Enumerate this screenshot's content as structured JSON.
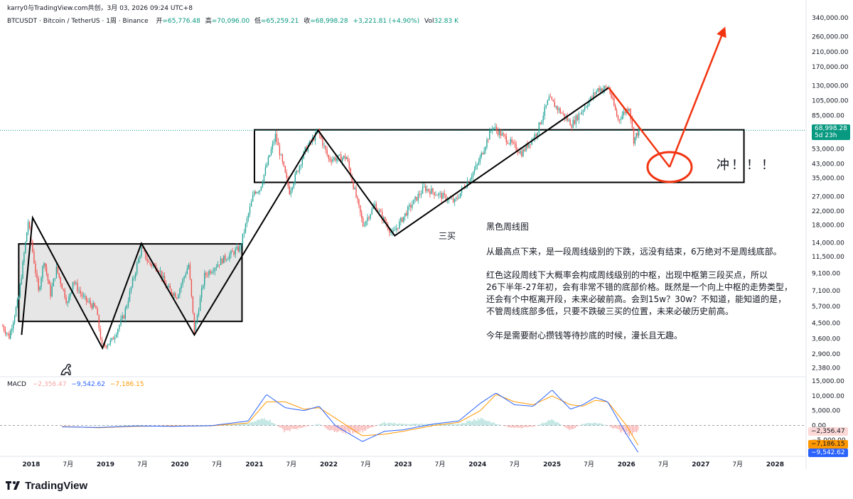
{
  "header": {
    "author_line": "karry0与TradingView.com共创，3月 03, 2026 09:24 UTC+8",
    "symbol": "BTCUSDT · Bitcoin / TetherUS · 1周 · Binance",
    "open_label": "开",
    "open": "=65,776.48",
    "high_label": "高",
    "high": "=70,096.00",
    "low_label": "低",
    "low": "=65,259.21",
    "close_label": "收",
    "close": "=68,998.28",
    "change": "+3,221.81 (+4.90%)",
    "vol_label": "Vol",
    "vol": "32.83 K"
  },
  "price_axis": {
    "ticks": [
      "340,000.00",
      "260,000.00",
      "210,000.00",
      "170,000.00",
      "130,000.00",
      "105,000.00",
      "85,000.00",
      "68,998.28",
      "53,000.00",
      "43,000.00",
      "35,000.00",
      "27,000.00",
      "22,000.00",
      "18,000.00",
      "14,000.00",
      "11,500.00",
      "9,100.00",
      "7,100.00",
      "5,700.00",
      "4,500.00",
      "3,600.00",
      "2,900.00",
      "2,380.00"
    ],
    "current_price": "68,998.28",
    "current_countdown": "5d 23h"
  },
  "macd_axis": {
    "ticks": [
      "15,000.00",
      "10,000.00",
      "5,000.00",
      "0.00",
      "−5,000.00"
    ]
  },
  "macd_legend": {
    "label": "MACD",
    "hist": "−2,356.47",
    "macd": "−9,542.62",
    "signal": "−7,186.15"
  },
  "macd_tags": {
    "hist": "−2,356.47",
    "signal": "−7,186.15",
    "macd": "−9,542.62"
  },
  "time_axis": [
    "2018",
    "7月",
    "2019",
    "7月",
    "2020",
    "7月",
    "2021",
    "7月",
    "2022",
    "7月",
    "2023",
    "7月",
    "2024",
    "7月",
    "2025",
    "7月",
    "2026",
    "7月",
    "2027",
    "7月",
    "2028"
  ],
  "annotations": {
    "san_mai": "三买",
    "chong": "冲！！！",
    "title": "黑色周线图",
    "para1": "从最高点下来，是一段周线级别的下跌，远没有结束，6万绝对不是周线底部。",
    "para2_l1": "红色这段周线下大概率会构成周线级别的中枢，出现中枢第三段买点，所以",
    "para2_l2": "26下半年-27年初，会有非常不错的底部价格。既然是一个向上中枢的走势类型，",
    "para2_l3": "还会有个中枢离开段，未来必破前高。会到15w？30w？不知道，能知道的是，",
    "para2_l4": "不管周线底部多低，只要不跌破三买的位置，未来必破历史前高。",
    "para3": "今年是需要耐心攒钱等待抄底的时候，漫长且无趣。"
  },
  "branding": {
    "logo_text": "TradingView"
  },
  "colors": {
    "up": "#26a69a",
    "down": "#ef5350",
    "annotation_red": "#f23411",
    "macd_line": "#2962ff",
    "signal_line": "#ff9800",
    "hist_up": "#26a69a",
    "hist_down": "#ef5350",
    "price_tag": "#089981"
  },
  "chart_data": {
    "type": "candlestick",
    "symbol": "BTCUSDT",
    "interval": "1W",
    "y_scale": "log",
    "ylim": [
      2100,
      380000
    ],
    "xlim": [
      "2017-08-01",
      "2028-06-01"
    ],
    "close_path": [
      [
        "2017-08-14",
        4300
      ],
      [
        "2017-09-15",
        3700
      ],
      [
        "2017-11-01",
        6500
      ],
      [
        "2017-12-17",
        19000
      ],
      [
        "2018-02-06",
        7000
      ],
      [
        "2018-03-05",
        11000
      ],
      [
        "2018-04-06",
        6800
      ],
      [
        "2018-05-05",
        9700
      ],
      [
        "2018-06-29",
        5900
      ],
      [
        "2018-07-25",
        8200
      ],
      [
        "2018-09-15",
        6400
      ],
      [
        "2018-11-15",
        5500
      ],
      [
        "2018-12-15",
        3200
      ],
      [
        "2019-02-01",
        3500
      ],
      [
        "2019-04-01",
        5000
      ],
      [
        "2019-06-26",
        13000
      ],
      [
        "2019-08-01",
        10500
      ],
      [
        "2019-09-20",
        9800
      ],
      [
        "2019-10-25",
        7500
      ],
      [
        "2019-12-17",
        6600
      ],
      [
        "2020-02-13",
        10300
      ],
      [
        "2020-03-12",
        4000
      ],
      [
        "2020-05-01",
        8800
      ],
      [
        "2020-07-27",
        11000
      ],
      [
        "2020-10-21",
        13000
      ],
      [
        "2020-12-31",
        29000
      ],
      [
        "2021-01-27",
        30000
      ],
      [
        "2021-04-14",
        64000
      ],
      [
        "2021-06-22",
        29000
      ],
      [
        "2021-09-07",
        52000
      ],
      [
        "2021-11-10",
        68000
      ],
      [
        "2021-12-31",
        46000
      ],
      [
        "2022-03-29",
        47000
      ],
      [
        "2022-06-18",
        18000
      ],
      [
        "2022-08-15",
        24000
      ],
      [
        "2022-11-09",
        15800
      ],
      [
        "2023-01-31",
        23000
      ],
      [
        "2023-04-14",
        30500
      ],
      [
        "2023-09-11",
        25000
      ],
      [
        "2023-12-31",
        42000
      ],
      [
        "2024-03-14",
        73000
      ],
      [
        "2024-08-05",
        50000
      ],
      [
        "2024-10-15",
        66000
      ],
      [
        "2024-12-17",
        108000
      ],
      [
        "2025-04-07",
        75000
      ],
      [
        "2025-08-14",
        124000
      ],
      [
        "2025-10-06",
        126000
      ],
      [
        "2025-11-21",
        80000
      ],
      [
        "2026-01-14",
        97000
      ],
      [
        "2026-02-06",
        60000
      ],
      [
        "2026-03-03",
        68998.28
      ]
    ],
    "black_waves": [
      [
        "2017-11-15",
        3800
      ],
      [
        "2018-01-08",
        20000
      ],
      [
        "2018-12-17",
        3150
      ],
      [
        "2019-06-26",
        13900
      ],
      [
        "2020-03-12",
        3800
      ],
      [
        "2021-11-10",
        69000
      ],
      [
        "2022-11-21",
        15500
      ],
      [
        "2025-10-06",
        126200
      ]
    ],
    "red_projection": [
      [
        "2025-10-06",
        126200
      ],
      [
        "2026-08-01",
        41000
      ],
      [
        "2027-05-01",
        300000
      ]
    ],
    "zones": [
      {
        "x": [
          "2017-11-01",
          "2020-11-01"
        ],
        "y": [
          4600,
          13800
        ],
        "fill": "#e6e6e6"
      },
      {
        "x": [
          "2021-01-01",
          "2027-08-01"
        ],
        "y": [
          33000,
          69500
        ],
        "fill": "none"
      }
    ],
    "macd": {
      "x": [
        "2018-06-01",
        "2018-12-01",
        "2019-06-01",
        "2019-12-01",
        "2020-06-01",
        "2020-12-01",
        "2021-03-01",
        "2021-06-01",
        "2021-09-01",
        "2021-11-15",
        "2022-02-01",
        "2022-06-15",
        "2022-10-01",
        "2023-01-01",
        "2023-06-01",
        "2023-10-01",
        "2024-01-15",
        "2024-04-01",
        "2024-07-01",
        "2024-10-01",
        "2025-01-01",
        "2025-04-01",
        "2025-06-01",
        "2025-08-01",
        "2025-10-01",
        "2026-01-01",
        "2026-03-03"
      ],
      "macd": [
        -500,
        -700,
        -200,
        -300,
        -100,
        1500,
        10500,
        6000,
        5000,
        6500,
        0,
        -5500,
        -2000,
        -1500,
        500,
        1500,
        7500,
        11000,
        7000,
        6500,
        12000,
        5500,
        7000,
        9500,
        8000,
        -3000,
        -9542.62
      ],
      "signal": [
        -400,
        -800,
        -300,
        -200,
        -150,
        800,
        8000,
        8000,
        5500,
        6000,
        2500,
        -3500,
        -3000,
        -2000,
        0,
        1000,
        5000,
        10500,
        8000,
        7000,
        10000,
        7000,
        6500,
        8500,
        8000,
        0,
        -7186.15
      ],
      "hist": [
        -100,
        100,
        100,
        -100,
        50,
        700,
        2500,
        -2000,
        -500,
        500,
        -2500,
        -2000,
        1000,
        500,
        500,
        500,
        2500,
        500,
        -1000,
        -500,
        2000,
        -1500,
        500,
        1000,
        0,
        -3000,
        -2356.47
      ]
    }
  }
}
